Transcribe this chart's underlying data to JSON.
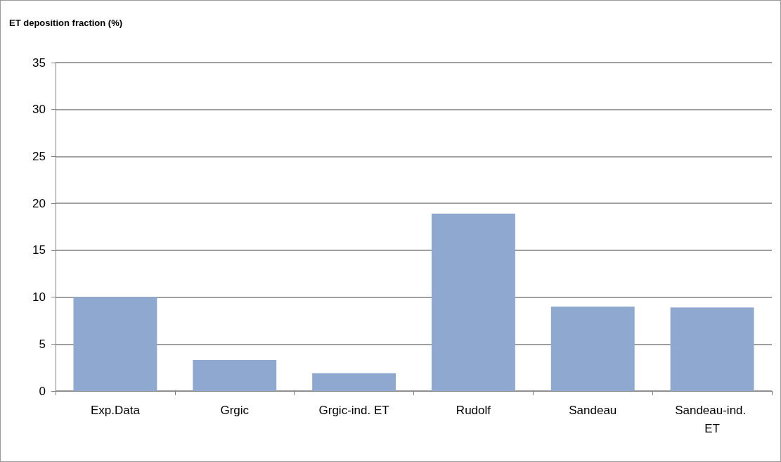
{
  "chart_data": {
    "type": "bar",
    "ylabel": "ET deposition fraction (%)",
    "categories": [
      "Exp.Data",
      "Grgic",
      "Grgic-ind. ET",
      "Rudolf",
      "Sandeau",
      "Sandeau-ind. ET"
    ],
    "values": [
      10,
      3.3,
      1.9,
      18.9,
      9.0,
      8.9
    ],
    "color": "#8fa8d0",
    "ylim": [
      0,
      35
    ],
    "yticks": [
      0,
      5,
      10,
      15,
      20,
      25,
      30,
      35
    ],
    "grid": "y"
  }
}
